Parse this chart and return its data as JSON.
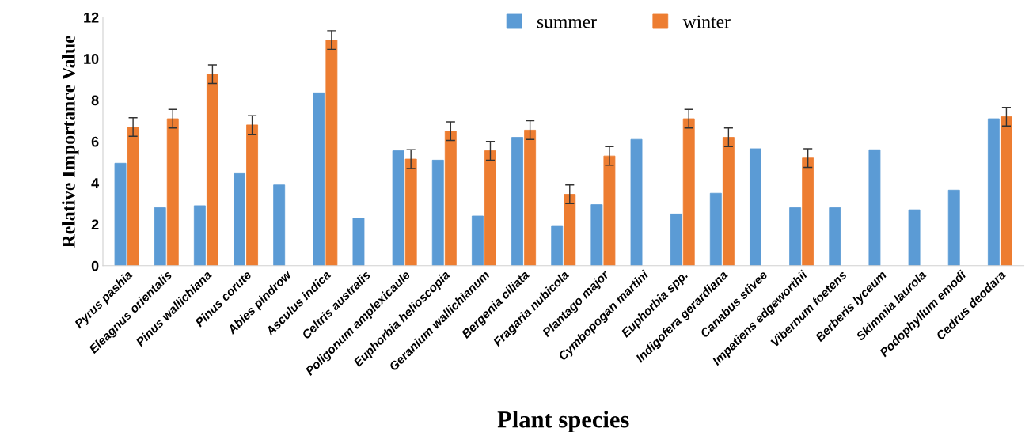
{
  "chart_data": {
    "type": "bar",
    "xlabel": "Plant species",
    "ylabel": "Relative Importance Value",
    "categories": [
      "Pyrus pashia",
      "Eleagnus orientalis",
      "Pinus wallichiana",
      "Pinus corute",
      "Abies pindrow",
      "Asculus indica",
      "Celtris australis",
      "Poligonum amplexicaule",
      "Euphorbia helioscopia",
      "Geranium wallichianum",
      "Bergenia ciliata",
      "Fragaria nubicola",
      "Plantago major",
      "Cymbopogan martini",
      "Euphorbia spp.",
      "Indigofera gerardiana",
      "Canabus stivee",
      "Impatiens edgeworthii",
      "Vibernum foetens",
      "Berberis lyceum",
      "Skimmia laurola",
      "Podophyllum emodi",
      "Cedrus deodara"
    ],
    "series": [
      {
        "name": "summer",
        "color": "#5b9bd5",
        "values": [
          4.95,
          2.8,
          2.9,
          4.45,
          3.9,
          8.35,
          2.3,
          5.55,
          5.1,
          2.4,
          6.2,
          1.9,
          2.95,
          6.1,
          2.5,
          3.5,
          5.65,
          2.8,
          2.8,
          5.6,
          2.7,
          3.65,
          7.1
        ]
      },
      {
        "name": "winter",
        "color": "#ed7d31",
        "values": [
          6.7,
          7.1,
          9.25,
          6.8,
          null,
          10.9,
          null,
          5.15,
          6.5,
          5.55,
          6.55,
          3.45,
          5.3,
          null,
          7.1,
          6.2,
          null,
          5.2,
          null,
          null,
          null,
          null,
          7.2
        ],
        "errors": [
          0.45,
          0.45,
          0.45,
          0.45,
          null,
          0.45,
          null,
          0.45,
          0.45,
          0.45,
          0.45,
          0.45,
          0.45,
          null,
          0.45,
          0.45,
          null,
          0.45,
          null,
          null,
          null,
          null,
          0.45
        ]
      }
    ],
    "ylim": [
      0,
      12
    ],
    "yticks": [
      0,
      2,
      4,
      6,
      8,
      10,
      12
    ],
    "grid": false,
    "legend": "top"
  }
}
